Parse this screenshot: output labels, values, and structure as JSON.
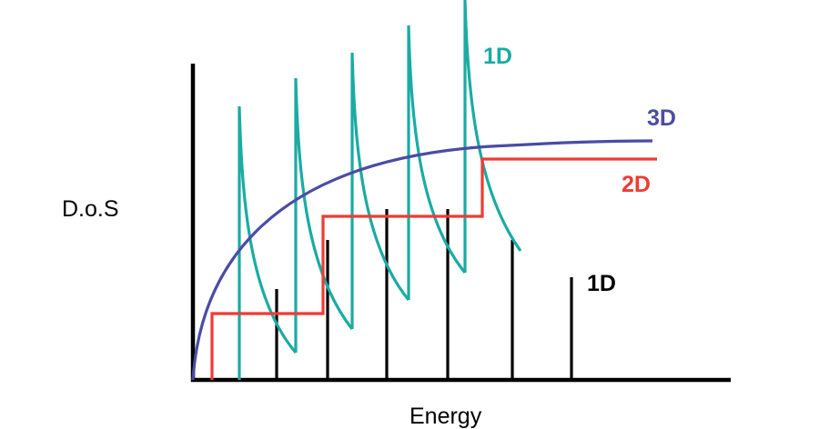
{
  "labels": {
    "y_axis": "D.o.S",
    "x_axis": "Energy",
    "curve_3d": "3D",
    "curve_2d": "2D",
    "curve_1d_teal": "1D",
    "curve_0d_black": "1D"
  },
  "colors": {
    "axis": "#000000",
    "curve_3d": "#4b4ba6",
    "curve_2d": "#ef3b33",
    "curve_1d": "#1aaba4",
    "curve_0d": "#000000",
    "text": "#000000"
  }
}
